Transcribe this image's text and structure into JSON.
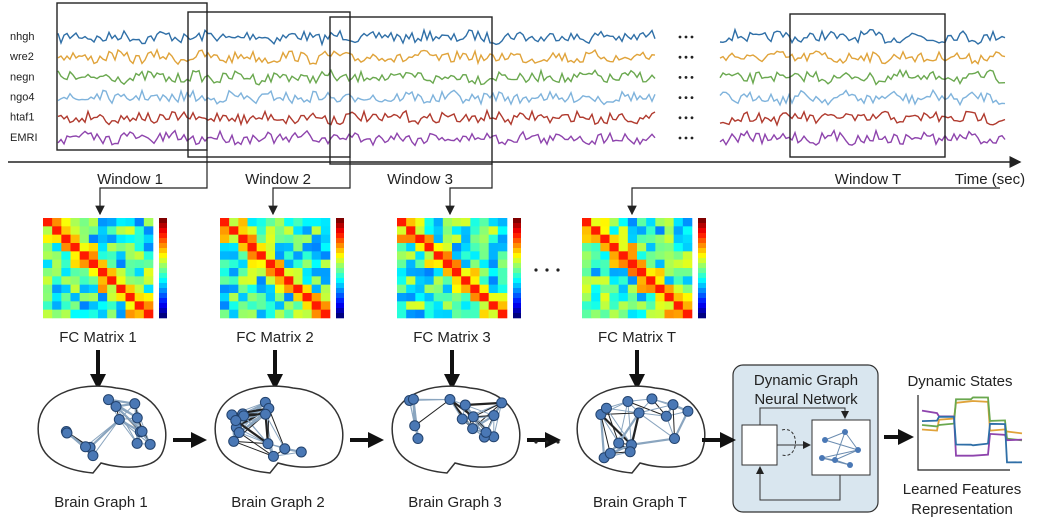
{
  "signals": {
    "labels": [
      "nhgh",
      "wre2",
      "negn",
      "ngo4",
      "htaf1",
      "EMRI"
    ]
  },
  "time_axis_label": "Time (sec)",
  "windows": [
    "Window 1",
    "Window 2",
    "Window 3",
    "Window T"
  ],
  "fc_matrices": [
    "FC Matrix 1",
    "FC Matrix 2",
    "FC Matrix 3",
    "FC Matrix T"
  ],
  "brain_graphs": [
    "Brain Graph 1",
    "Brain Graph 2",
    "Brain Graph 3",
    "Brain Graph T"
  ],
  "model": {
    "title_lines": [
      "Dynamic Graph",
      "Neural Network"
    ]
  },
  "output": {
    "title": "Dynamic States",
    "caption_lines": [
      "Learned Features",
      "Representation"
    ]
  }
}
